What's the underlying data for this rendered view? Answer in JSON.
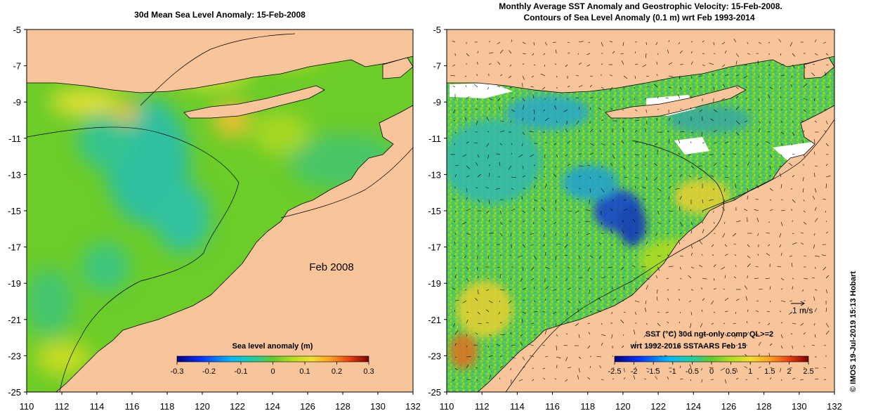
{
  "left_panel": {
    "title": "30d Mean Sea Level Anomaly: 15-Feb-2008",
    "month_label": "Feb 2008",
    "colorbar_title": "Sea level anomaly (m)",
    "colorbar_ticks": [
      "-0.3",
      "-0.2",
      "-0.1",
      "0",
      "0.1",
      "0.2",
      "0.3"
    ]
  },
  "right_panel": {
    "title_line1": "Monthly Average SST Anomaly  and Geostrophic Velocity: 15-Feb-2008.",
    "title_line2": "Contours of Sea Level Anomaly (0.1 m) wrt Feb 1993-2014",
    "scale_label": ".1 m/s",
    "colorbar_title_line1": "SST (°C) 30d ngt-only comp QL>=2",
    "colorbar_title_line2": "wrt 1992-2016 SSTAARS Feb 15",
    "colorbar_ticks": [
      "-2.5",
      "-2",
      "-1.5",
      "-1",
      "-0.5",
      "0",
      "0.5",
      "1",
      "1.5",
      "2",
      "2.5"
    ]
  },
  "axes": {
    "lat_ticks": [
      "-5",
      "-7",
      "-9",
      "-11",
      "-13",
      "-15",
      "-17",
      "-19",
      "-21",
      "-23",
      "-25"
    ],
    "lon_ticks": [
      "110",
      "112",
      "114",
      "116",
      "118",
      "120",
      "122",
      "124",
      "126",
      "128",
      "130",
      "132"
    ]
  },
  "credit": "© IMOS 19-Jul-2019 15:13 Hobart",
  "colors": {
    "land": "#f8c59b",
    "ocean_base": "#6ccc28",
    "colormap": [
      "#00007f",
      "#0040ff",
      "#00c0ff",
      "#20d0a0",
      "#60cc30",
      "#a0dc20",
      "#e8e030",
      "#ffb030",
      "#f06020",
      "#b01000",
      "#800000"
    ]
  }
}
